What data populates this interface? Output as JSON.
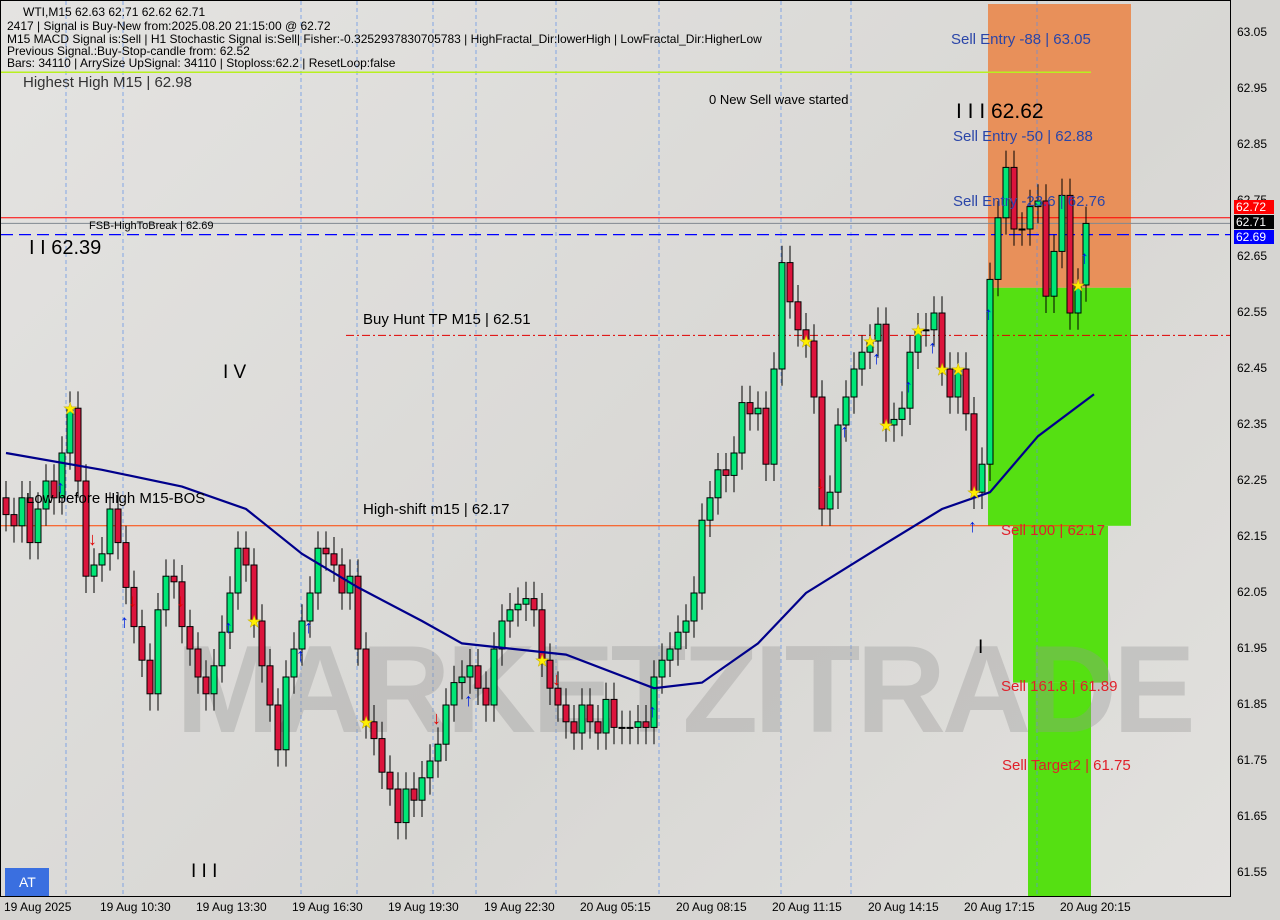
{
  "header": {
    "symbol_line": "WTI,M15  62.63 62.71 62.62 62.71",
    "signal_line": "2417 | Signal is Buy-New from:2025.08.20 21:15:00 @ 62.72",
    "indicators_line": "M15 MACD Signal is:Sell | H1 Stochastic Signal is:Sell| Fisher:-0.3252937830705783 | HighFractal_Dir:lowerHigh | LowFractal_Dir:HigherLow",
    "previous_signal_line": "Previous Signal.:Buy-Stop-candle from: 62.52",
    "bars_line": "Bars: 34110 | ArrySize UpSignal: 34110 | Stoploss:62.2 | ResetLoop:false",
    "highest_high": "Highest High   M15 | 62.98"
  },
  "labels": {
    "new_sell_wave": "0 New Sell wave started",
    "wave3_top": "I I I 62.62",
    "wave2": "I I 62.39",
    "wave4": "I V",
    "wave3_bottom": "I I I",
    "wave1": "I",
    "low_before_high": "Low before High    M15-BOS",
    "fsb": "FSB-HighToBreak | 62.69",
    "buy_hunt": "Buy Hunt TP M15 | 62.51",
    "high_shift": "High-shift m15 | 62.17",
    "sell_entry_88": "Sell Entry -88 | 63.05",
    "sell_entry_50": "Sell Entry -50 | 62.88",
    "sell_entry_23": "Sell Entry -23.6 | 62.76",
    "sell_100": "Sell 100 | 62.17",
    "sell_161": "Sell 161.8 | 61.89",
    "sell_target2": "Sell Target2 | 61.75",
    "watermark": "MARKETZITRADE",
    "at_button": "AT"
  },
  "price_tags": {
    "ask": "62.72",
    "last": "62.71",
    "line": "62.69"
  },
  "colors": {
    "bull": "#00e676",
    "bear": "#dc143c",
    "ma": "#00008b",
    "sell_zone": "#e8905a",
    "target_zone": "#55e012",
    "tag_red": "#ff0000",
    "tag_blue": "#0000ff"
  },
  "chart_data": {
    "type": "candlestick",
    "ylim": [
      61.5,
      63.1
    ],
    "y_ticks": [
      "63.05",
      "62.95",
      "62.85",
      "62.75",
      "62.65",
      "62.55",
      "62.45",
      "62.35",
      "62.25",
      "62.15",
      "62.05",
      "61.95",
      "61.85",
      "61.75",
      "61.65",
      "61.55"
    ],
    "x_ticks": [
      "19 Aug 2025",
      "19 Aug 10:30",
      "19 Aug 13:30",
      "19 Aug 16:30",
      "19 Aug 19:30",
      "19 Aug 22:30",
      "20 Aug 05:15",
      "20 Aug 08:15",
      "20 Aug 11:15",
      "20 Aug 14:15",
      "20 Aug 17:15",
      "20 Aug 20:15"
    ],
    "first_open": 62.22,
    "closes": [
      62.19,
      62.17,
      62.22,
      62.14,
      62.2,
      62.25,
      62.22,
      62.3,
      62.38,
      62.25,
      62.08,
      62.1,
      62.12,
      62.2,
      62.14,
      62.06,
      61.99,
      61.93,
      61.87,
      62.02,
      62.08,
      62.07,
      61.99,
      61.95,
      61.9,
      61.87,
      61.92,
      61.98,
      62.05,
      62.13,
      62.1,
      62.0,
      61.92,
      61.85,
      61.77,
      61.9,
      61.95,
      62.0,
      62.05,
      62.13,
      62.12,
      62.1,
      62.05,
      62.08,
      61.95,
      61.82,
      61.79,
      61.73,
      61.7,
      61.64,
      61.7,
      61.68,
      61.72,
      61.75,
      61.78,
      61.85,
      61.89,
      61.9,
      61.92,
      61.88,
      61.85,
      61.95,
      62.0,
      62.02,
      62.03,
      62.04,
      62.02,
      61.93,
      61.88,
      61.85,
      61.82,
      61.8,
      61.85,
      61.82,
      61.8,
      61.86,
      61.81,
      61.81,
      61.81,
      61.82,
      61.81,
      61.9,
      61.93,
      61.95,
      61.98,
      62.0,
      62.05,
      62.18,
      62.22,
      62.27,
      62.26,
      62.3,
      62.39,
      62.37,
      62.38,
      62.28,
      62.45,
      62.64,
      62.57,
      62.52,
      62.5,
      62.4,
      62.2,
      62.23,
      62.35,
      62.4,
      62.45,
      62.48,
      62.5,
      62.53,
      62.35,
      62.36,
      62.38,
      62.48,
      62.52,
      62.52,
      62.55,
      62.45,
      62.4,
      62.45,
      62.37,
      62.23,
      62.28,
      62.61,
      62.72,
      62.81,
      62.7,
      62.7,
      62.74,
      62.75,
      62.58,
      62.66,
      62.76,
      62.55,
      62.6,
      62.71
    ],
    "moving_average": [
      [
        0,
        62.3
      ],
      [
        12,
        62.27
      ],
      [
        22,
        62.24
      ],
      [
        30,
        62.2
      ],
      [
        37,
        62.12
      ],
      [
        44,
        62.06
      ],
      [
        52,
        62.0
      ],
      [
        57,
        61.96
      ],
      [
        70,
        61.94
      ],
      [
        81,
        61.88
      ],
      [
        87,
        61.89
      ],
      [
        94,
        61.96
      ],
      [
        100,
        62.05
      ],
      [
        109,
        62.13
      ],
      [
        117,
        62.2
      ],
      [
        123,
        62.23
      ],
      [
        129,
        62.33
      ],
      [
        136,
        62.405
      ]
    ],
    "markers": [
      {
        "bar": 8,
        "type": "star"
      },
      {
        "bar": 7,
        "type": "up"
      },
      {
        "bar": 11,
        "type": "down"
      },
      {
        "bar": 16,
        "type": "down"
      },
      {
        "bar": 15,
        "type": "up"
      },
      {
        "bar": 22,
        "type": "down"
      },
      {
        "bar": 28,
        "type": "up"
      },
      {
        "bar": 31,
        "type": "star"
      },
      {
        "bar": 37,
        "type": "up"
      },
      {
        "bar": 38,
        "type": "up"
      },
      {
        "bar": 45,
        "type": "star"
      },
      {
        "bar": 54,
        "type": "down"
      },
      {
        "bar": 58,
        "type": "up"
      },
      {
        "bar": 67,
        "type": "star"
      },
      {
        "bar": 69,
        "type": "down"
      },
      {
        "bar": 81,
        "type": "up"
      },
      {
        "bar": 100,
        "type": "star"
      },
      {
        "bar": 102,
        "type": "down"
      },
      {
        "bar": 105,
        "type": "up"
      },
      {
        "bar": 108,
        "type": "star"
      },
      {
        "bar": 109,
        "type": "up"
      },
      {
        "bar": 110,
        "type": "star"
      },
      {
        "bar": 113,
        "type": "up"
      },
      {
        "bar": 114,
        "type": "star"
      },
      {
        "bar": 116,
        "type": "up"
      },
      {
        "bar": 117,
        "type": "star"
      },
      {
        "bar": 119,
        "type": "star"
      },
      {
        "bar": 121,
        "type": "up"
      },
      {
        "bar": 121,
        "type": "star"
      },
      {
        "bar": 123,
        "type": "up"
      },
      {
        "bar": 134,
        "type": "star"
      },
      {
        "bar": 135,
        "type": "up"
      }
    ],
    "levels": {
      "highest_high": 62.98,
      "fsb": 62.69,
      "buy_hunt": 62.51,
      "high_shift": 62.17,
      "last": 62.71,
      "ask": 62.72
    }
  }
}
